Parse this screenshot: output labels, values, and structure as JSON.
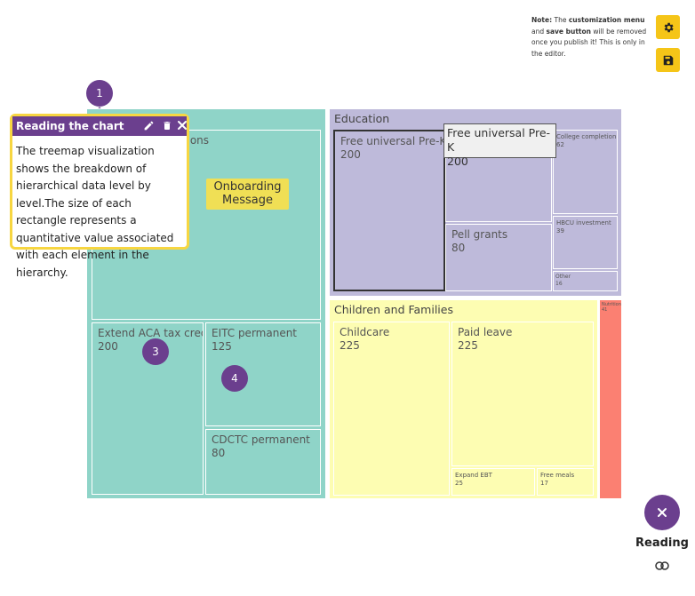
{
  "editor_note": {
    "prefix": "Note:",
    "text1": " The ",
    "menu": "customization menu",
    "text2": " and ",
    "save": "save button",
    "text3": " will be removed once you publish it! This is only in the editor."
  },
  "icons": {
    "settings": "gear-icon",
    "save": "floppy-disk-icon",
    "edit": "pencil-icon",
    "delete": "trash-icon",
    "close": "close-icon",
    "toggle": "toggle-icon"
  },
  "colors": {
    "health": "#8fd4c8",
    "education": "#bebada",
    "children": "#fdfdb2",
    "other_group": "#fb8072",
    "accent": "#6b3f8e",
    "highlight": "#f7d641",
    "button": "#f5c518"
  },
  "steps": [
    "1",
    "3",
    "4"
  ],
  "popup": {
    "title": "Reading the chart",
    "body": "The treemap visualization shows the breakdown of hierarchical data level by level.The size of each rectangle represents a quantitative value associated with each element in the hierarchy."
  },
  "onboarding": {
    "label": "Onboarding Message"
  },
  "tooltip": {
    "name": "Free universal Pre-K",
    "value": "200"
  },
  "reading": {
    "label": "Reading"
  },
  "chart_data": {
    "type": "treemap",
    "groups": [
      {
        "name": "",
        "children": [
          {
            "name": "Medicaid expansions",
            "value": null
          },
          {
            "name": "Extend ACA tax credit",
            "value": 200
          },
          {
            "name": "EITC permanent",
            "value": 125
          },
          {
            "name": "CDCTC permanent",
            "value": 80
          }
        ]
      },
      {
        "name": "Education",
        "children": [
          {
            "name": "Free universal Pre-K",
            "value": 200
          },
          {
            "name": "",
            "value": null
          },
          {
            "name": "Pell grants",
            "value": 80
          },
          {
            "name": "College completion",
            "value": 62
          },
          {
            "name": "HBCU investment",
            "value": 39
          },
          {
            "name": "Other",
            "value": 16
          }
        ]
      },
      {
        "name": "Children and Families",
        "children": [
          {
            "name": "Childcare",
            "value": 225
          },
          {
            "name": "Paid leave",
            "value": 225
          },
          {
            "name": "Expand EBT",
            "value": 25
          },
          {
            "name": "Free meals",
            "value": 17
          }
        ]
      },
      {
        "name": "",
        "children": [
          {
            "name": "Nutrition",
            "value": 41
          }
        ]
      }
    ]
  }
}
